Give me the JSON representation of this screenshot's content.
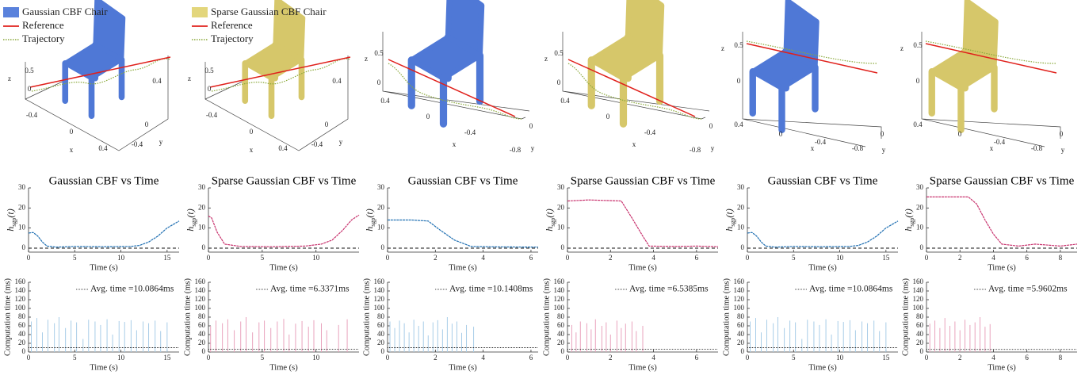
{
  "panels_3d": [
    {
      "legend": [
        {
          "label": "Gaussian CBF Chair",
          "color": "#5a82dc"
        },
        {
          "label": "Reference",
          "color": "#e0201b"
        },
        {
          "label": "Trajectory",
          "color": "#8aa83a"
        }
      ],
      "chair_color": "#4f78d6",
      "tick_labels": [
        "0.5",
        "0",
        "-0.4",
        "0",
        "0.4",
        "-0.4",
        "0",
        "0.4"
      ],
      "axis_labels": [
        "z",
        "x",
        "y"
      ]
    },
    {
      "legend": [
        {
          "label": "Sparse Gaussian CBF Chair",
          "color": "#e3d67c"
        },
        {
          "label": "Reference",
          "color": "#e0201b"
        },
        {
          "label": "Trajectory",
          "color": "#8aa83a"
        }
      ],
      "chair_color": "#d6c76a",
      "tick_labels": [
        "0.5",
        "0",
        "-0.4",
        "0",
        "0.4",
        "-0.4",
        "0",
        "0.4"
      ],
      "axis_labels": [
        "z",
        "x",
        "y"
      ]
    },
    {
      "chair_color": "#4f78d6",
      "tick_labels": [
        "0.5",
        "0",
        "0.4",
        "0",
        "-0.4",
        "-0.8",
        "0"
      ],
      "axis_labels": [
        "z",
        "x",
        "y"
      ]
    },
    {
      "chair_color": "#d6c76a",
      "tick_labels": [
        "0.5",
        "0",
        "0.4",
        "0",
        "-0.4",
        "-0.8",
        "0"
      ],
      "axis_labels": [
        "z",
        "x",
        "y"
      ]
    },
    {
      "chair_color": "#4f78d6",
      "tick_labels": [
        "0.5",
        "0",
        "0.4",
        "0",
        "-0.4",
        "-0.8",
        "0"
      ],
      "axis_labels": [
        "z",
        "x",
        "y"
      ]
    },
    {
      "chair_color": "#d6c76a",
      "tick_labels": [
        "0.5",
        "0",
        "0.4",
        "0",
        "-0.4",
        "-0.8",
        "0"
      ],
      "axis_labels": [
        "z",
        "x",
        "y"
      ]
    }
  ],
  "chart_data": [
    {
      "type": "line",
      "title": "Gaussian CBF vs Time",
      "xlabel": "Time (s)",
      "ylabel": "h",
      "ylabel_sub": "sgp",
      "ylabel_suffix": "(t)",
      "color": "#1f6fb2",
      "hline": 0,
      "x": [
        0,
        0.5,
        1,
        1.5,
        2,
        3,
        5,
        8,
        11,
        12,
        13,
        14,
        15,
        16.3
      ],
      "values": [
        7.5,
        7.8,
        6,
        3,
        1,
        0.5,
        0.8,
        0.7,
        0.8,
        1.3,
        3,
        6,
        10,
        13.5
      ],
      "xlim": [
        0,
        16.3
      ],
      "ylim": [
        -2,
        30
      ],
      "xticks": [
        0,
        5,
        10,
        15
      ],
      "yticks": [
        0,
        10,
        20,
        30
      ]
    },
    {
      "type": "line",
      "title": "Sparse Gaussian CBF vs Time",
      "xlabel": "Time (s)",
      "ylabel": "h",
      "ylabel_sub": "sgp",
      "ylabel_suffix": "(t)",
      "color": "#c8336e",
      "hline": 0,
      "x": [
        0,
        0.3,
        0.8,
        1.5,
        3,
        6,
        9,
        10.5,
        11.5,
        12.5,
        13.3,
        14
      ],
      "values": [
        16,
        15,
        8,
        2,
        0.8,
        0.7,
        1,
        2,
        4,
        9,
        14,
        16.5
      ],
      "xlim": [
        0,
        14
      ],
      "ylim": [
        -2,
        30
      ],
      "xticks": [
        0,
        5,
        10
      ],
      "yticks": [
        0,
        10,
        20,
        30
      ]
    },
    {
      "type": "line",
      "title": "Gaussian CBF vs Time",
      "xlabel": "Time (s)",
      "ylabel": "h",
      "ylabel_sub": "sgp",
      "ylabel_suffix": "(t)",
      "color": "#1f6fb2",
      "hline": 0,
      "x": [
        0,
        1,
        1.7,
        2.2,
        2.8,
        3.5,
        4.5,
        6.3
      ],
      "values": [
        14,
        14,
        13.5,
        9,
        4,
        0.8,
        0.6,
        0.5
      ],
      "xlim": [
        0,
        6.3
      ],
      "ylim": [
        -2,
        30
      ],
      "xticks": [
        0,
        2,
        4,
        6
      ],
      "yticks": [
        0,
        10,
        20,
        30
      ]
    },
    {
      "type": "line",
      "title": "Sparse Gaussian CBF vs Time",
      "xlabel": "Time (s)",
      "ylabel": "h",
      "ylabel_sub": "sgp",
      "ylabel_suffix": "(t)",
      "color": "#c8336e",
      "hline": 0,
      "x": [
        0,
        1,
        2.5,
        3,
        3.5,
        3.8,
        5,
        6,
        7
      ],
      "values": [
        23.5,
        24,
        23.5,
        15,
        6,
        1,
        0.8,
        1,
        0.7
      ],
      "xlim": [
        0,
        7
      ],
      "ylim": [
        -2,
        30
      ],
      "xticks": [
        0,
        2,
        4,
        6
      ],
      "yticks": [
        0,
        10,
        20,
        30
      ]
    },
    {
      "type": "line",
      "title": "Gaussian CBF vs Time",
      "xlabel": "Time (s)",
      "ylabel": "h",
      "ylabel_sub": "sgp",
      "ylabel_suffix": "(t)",
      "color": "#1f6fb2",
      "hline": 0,
      "x": [
        0,
        0.5,
        1,
        1.5,
        2,
        3,
        5,
        8,
        11,
        12,
        13,
        14,
        15,
        16.3
      ],
      "values": [
        7.5,
        7.8,
        6,
        3,
        1,
        0.5,
        0.8,
        0.7,
        0.8,
        1.3,
        3,
        6,
        10,
        13.5
      ],
      "xlim": [
        0,
        16.3
      ],
      "ylim": [
        -2,
        30
      ],
      "xticks": [
        0,
        5,
        10,
        15
      ],
      "yticks": [
        0,
        10,
        20,
        30
      ]
    },
    {
      "type": "line",
      "title": "Sparse Gaussian CBF vs Time",
      "xlabel": "Time (s)",
      "ylabel": "h",
      "ylabel_sub": "sgp",
      "ylabel_suffix": "(t)",
      "color": "#c8336e",
      "hline": 0,
      "x": [
        0,
        2.5,
        3,
        3.5,
        4,
        4.5,
        5.5,
        6.5,
        8,
        9
      ],
      "values": [
        25.5,
        25.5,
        22,
        14,
        7,
        2,
        1,
        2,
        1,
        2
      ],
      "xlim": [
        0,
        9
      ],
      "ylim": [
        -2,
        30
      ],
      "xticks": [
        0,
        2,
        4,
        6,
        8
      ],
      "yticks": [
        0,
        10,
        20,
        30
      ]
    },
    {
      "type": "stem",
      "xlabel": "Time (s)",
      "ylabel": "Computation time (ms)",
      "color": "#a8cde8",
      "avg": 10.0864,
      "avg_label": "Avg. time =10.0864ms",
      "x": [
        0.3,
        0.9,
        1.5,
        2.1,
        2.8,
        3.3,
        4.0,
        4.6,
        5.2,
        5.9,
        6.5,
        7.2,
        7.8,
        8.5,
        9.1,
        9.8,
        10.4,
        11.1,
        11.7,
        12.4,
        13.0,
        13.7,
        14.3,
        15.0
      ],
      "values": [
        70,
        78,
        45,
        74,
        66,
        80,
        55,
        72,
        68,
        30,
        74,
        70,
        62,
        75,
        40,
        71,
        69,
        73,
        50,
        70,
        66,
        72,
        48,
        68
      ],
      "xlim": [
        0,
        16.3
      ],
      "ylim": [
        0,
        160
      ],
      "xticks": [
        0,
        5,
        10,
        15
      ],
      "yticks": [
        0,
        20,
        40,
        60,
        80,
        100,
        120,
        140,
        160
      ]
    },
    {
      "type": "stem",
      "xlabel": "Time (s)",
      "ylabel": "Computation time (ms)",
      "color": "#e9a3bd",
      "avg": 6.3371,
      "avg_label": "Avg. time =6.3371ms",
      "x": [
        0.2,
        0.7,
        1.3,
        1.8,
        2.4,
        3.0,
        3.5,
        4.1,
        4.7,
        5.2,
        5.8,
        6.4,
        7.0,
        7.5,
        8.1,
        8.7,
        9.3,
        9.8,
        10.5,
        11.0,
        12.1,
        12.9
      ],
      "values": [
        60,
        72,
        66,
        75,
        50,
        70,
        80,
        45,
        68,
        72,
        55,
        70,
        76,
        40,
        65,
        71,
        58,
        73,
        66,
        50,
        62,
        75
      ],
      "xlim": [
        0,
        14
      ],
      "ylim": [
        0,
        160
      ],
      "xticks": [
        0,
        5,
        10
      ],
      "yticks": [
        0,
        20,
        40,
        60,
        80,
        100,
        120,
        140,
        160
      ]
    },
    {
      "type": "stem",
      "xlabel": "Time (s)",
      "ylabel": "Computation time (ms)",
      "color": "#a8cde8",
      "avg": 10.1408,
      "avg_label": "Avg. time =10.1408ms",
      "x": [
        0.1,
        0.3,
        0.5,
        0.7,
        0.9,
        1.1,
        1.3,
        1.5,
        1.7,
        1.9,
        2.1,
        2.3,
        2.5,
        2.7,
        2.9,
        3.1,
        3.3,
        3.6
      ],
      "values": [
        70,
        55,
        72,
        66,
        45,
        74,
        60,
        70,
        38,
        68,
        73,
        52,
        80,
        65,
        70,
        44,
        62,
        58
      ],
      "xlim": [
        0,
        6.3
      ],
      "ylim": [
        0,
        160
      ],
      "xticks": [
        0,
        2,
        4,
        6
      ],
      "yticks": [
        0,
        20,
        40,
        60,
        80,
        100,
        120,
        140,
        160
      ]
    },
    {
      "type": "stem",
      "xlabel": "Time (s)",
      "ylabel": "Computation time (ms)",
      "color": "#e9a3bd",
      "avg": 6.5385,
      "avg_label": "Avg. time =6.5385ms",
      "x": [
        0.2,
        0.4,
        0.6,
        0.9,
        1.1,
        1.3,
        1.6,
        1.8,
        2.0,
        2.3,
        2.5,
        2.7,
        3.0,
        3.2,
        3.5
      ],
      "values": [
        62,
        45,
        70,
        66,
        52,
        75,
        60,
        68,
        40,
        72,
        55,
        65,
        70,
        48,
        60
      ],
      "xlim": [
        0,
        7
      ],
      "ylim": [
        0,
        160
      ],
      "xticks": [
        0,
        2,
        4,
        6
      ],
      "yticks": [
        0,
        20,
        40,
        60,
        80,
        100,
        120,
        140,
        160
      ]
    },
    {
      "type": "stem",
      "xlabel": "Time (s)",
      "ylabel": "Computation time (ms)",
      "color": "#a8cde8",
      "avg": 10.0864,
      "avg_label": "Avg. time =10.0864ms",
      "x": [
        0.3,
        0.9,
        1.5,
        2.1,
        2.8,
        3.3,
        4.0,
        4.6,
        5.2,
        5.9,
        6.5,
        7.2,
        7.8,
        8.5,
        9.1,
        9.8,
        10.4,
        11.1,
        11.7,
        12.4,
        13.0,
        13.7,
        14.3,
        15.0
      ],
      "values": [
        70,
        78,
        45,
        74,
        66,
        80,
        55,
        72,
        68,
        30,
        74,
        70,
        62,
        75,
        40,
        71,
        69,
        73,
        50,
        70,
        66,
        72,
        48,
        68
      ],
      "xlim": [
        0,
        16.3
      ],
      "ylim": [
        0,
        160
      ],
      "xticks": [
        0,
        5,
        10,
        15
      ],
      "yticks": [
        0,
        20,
        40,
        60,
        80,
        100,
        120,
        140,
        160
      ]
    },
    {
      "type": "stem",
      "xlabel": "Time (s)",
      "ylabel": "Computation time (ms)",
      "color": "#e9a3bd",
      "avg": 5.9602,
      "avg_label": "Avg. time =5.9602ms",
      "x": [
        0.2,
        0.5,
        0.8,
        1.1,
        1.4,
        1.7,
        2.0,
        2.3,
        2.6,
        2.9,
        3.2,
        3.5,
        3.8
      ],
      "values": [
        65,
        72,
        55,
        78,
        60,
        70,
        50,
        74,
        62,
        68,
        80,
        58,
        64
      ],
      "xlim": [
        0,
        9
      ],
      "ylim": [
        0,
        160
      ],
      "xticks": [
        0,
        2,
        4,
        6,
        8
      ],
      "yticks": [
        0,
        20,
        40,
        60,
        80,
        100,
        120,
        140,
        160
      ]
    }
  ]
}
